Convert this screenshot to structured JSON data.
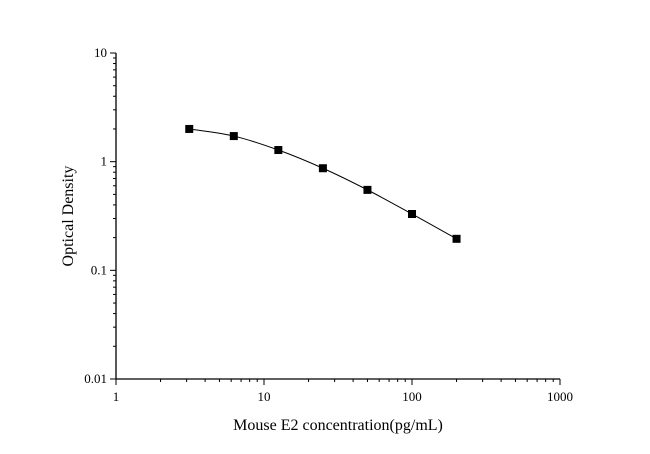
{
  "chart_data": {
    "type": "line",
    "title": "",
    "xlabel": "Mouse E2 concentration(pg/mL)",
    "ylabel": "Optical Density",
    "x_scale": "log",
    "y_scale": "log",
    "xlim": [
      1,
      1000
    ],
    "ylim": [
      0.01,
      10
    ],
    "x_ticks": [
      "1",
      "10",
      "100",
      "1000"
    ],
    "y_ticks": [
      "0.01",
      "0.1",
      "1",
      "10"
    ],
    "grid": false,
    "legend": "none",
    "marker": "square",
    "color": "#000000",
    "series": [
      {
        "x": [
          3.125,
          6.25,
          12.5,
          25,
          50,
          100,
          200
        ],
        "y": [
          2.0,
          1.72,
          1.28,
          0.87,
          0.55,
          0.33,
          0.195
        ]
      }
    ]
  }
}
